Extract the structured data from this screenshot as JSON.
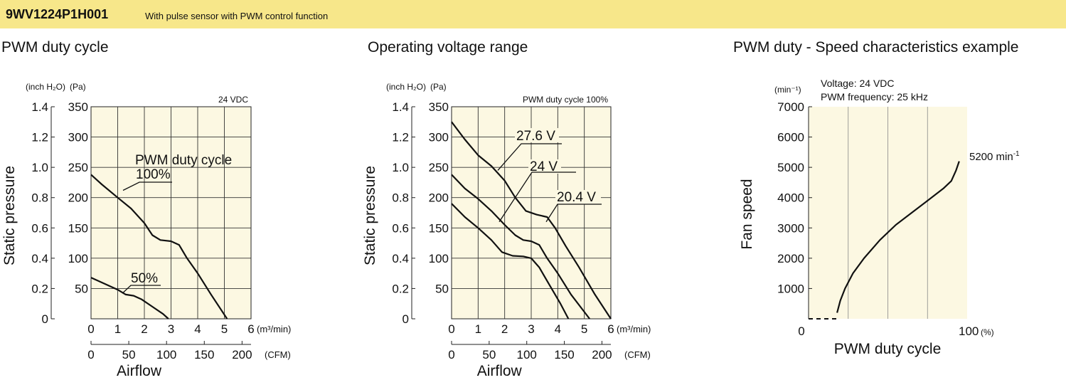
{
  "header": {
    "model": "9WV1224P1H001",
    "description": "With pulse sensor with PWM control function",
    "background": "#f7e78a"
  },
  "plot_background": "#fcf8e2",
  "chart_data": [
    {
      "type": "line",
      "title": "PWM duty cycle",
      "ylabel": "Static pressure",
      "xlabel": "Airflow",
      "y_unit_left": "(inch H₂O)",
      "y_unit_right": "(Pa)",
      "x_unit_primary": "(m³/min)",
      "x_unit_secondary": "(CFM)",
      "note": "24 VDC",
      "ylim": [
        0,
        350
      ],
      "xlim": [
        0,
        6
      ],
      "y_ticks_pa": [
        0,
        50,
        100,
        150,
        200,
        250,
        300,
        350
      ],
      "y_tick_labels_pa": [
        "",
        "50",
        "100",
        "150",
        "200",
        "250",
        "300",
        "350"
      ],
      "y_ticks_inch": [
        "0",
        "0.2",
        "0.4",
        "0.6",
        "0.8",
        "1.0",
        "1.2",
        "1.4"
      ],
      "x_ticks_m3": [
        "0",
        "1",
        "2",
        "3",
        "4",
        "5",
        "6"
      ],
      "x_ticks_cfm": [
        0,
        50,
        100,
        150,
        200
      ],
      "x_tick_labels_cfm": [
        "0",
        "50",
        "100",
        "150",
        "200"
      ],
      "grid": true,
      "series": [
        {
          "name": "PWM duty cycle 100%",
          "x": [
            0,
            0.4,
            1.0,
            1.5,
            2.0,
            2.3,
            2.6,
            3.0,
            3.3,
            3.6,
            4.0,
            4.5,
            5.1
          ],
          "y": [
            238,
            222,
            200,
            182,
            158,
            138,
            130,
            128,
            122,
            100,
            75,
            40,
            0
          ]
        },
        {
          "name": "50%",
          "x": [
            0,
            0.5,
            1.0,
            1.3,
            1.6,
            1.9,
            2.3,
            2.7,
            2.9
          ],
          "y": [
            68,
            58,
            48,
            40,
            38,
            32,
            20,
            8,
            0
          ]
        }
      ],
      "labels": [
        {
          "text": "PWM duty cycle",
          "lines": 1
        },
        {
          "text": "100%"
        },
        {
          "text": "50%"
        }
      ]
    },
    {
      "type": "line",
      "title": "Operating voltage range",
      "ylabel": "Static pressure",
      "xlabel": "Airflow",
      "y_unit_left": "(inch H₂O)",
      "y_unit_right": "(Pa)",
      "x_unit_primary": "(m³/min)",
      "x_unit_secondary": "(CFM)",
      "note": "PWM duty cycle 100%",
      "ylim": [
        0,
        350
      ],
      "xlim": [
        0,
        6
      ],
      "y_ticks_pa": [
        0,
        50,
        100,
        150,
        200,
        250,
        300,
        350
      ],
      "y_tick_labels_pa": [
        "",
        "50",
        "100",
        "150",
        "200",
        "250",
        "300",
        "350"
      ],
      "y_ticks_inch": [
        "0",
        "0.2",
        "0.4",
        "0.6",
        "0.8",
        "1.0",
        "1.2",
        "1.4"
      ],
      "x_ticks_m3": [
        "0",
        "1",
        "2",
        "3",
        "4",
        "5",
        "6"
      ],
      "x_ticks_cfm": [
        0,
        50,
        100,
        150,
        200
      ],
      "x_tick_labels_cfm": [
        "0",
        "50",
        "100",
        "150",
        "200"
      ],
      "grid": true,
      "series": [
        {
          "name": "27.6 V",
          "x": [
            0,
            0.5,
            1.0,
            1.5,
            2.0,
            2.4,
            2.8,
            3.2,
            3.6,
            3.9,
            4.3,
            4.8,
            5.4,
            6.0
          ],
          "y": [
            325,
            296,
            270,
            252,
            228,
            200,
            178,
            172,
            168,
            150,
            120,
            85,
            40,
            0
          ]
        },
        {
          "name": "24 V",
          "x": [
            0,
            0.5,
            1.0,
            1.5,
            2.0,
            2.4,
            2.7,
            3.0,
            3.3,
            3.6,
            4.0,
            4.5,
            5.2
          ],
          "y": [
            238,
            215,
            198,
            178,
            155,
            138,
            130,
            128,
            122,
            100,
            75,
            40,
            0
          ]
        },
        {
          "name": "20.4 V",
          "x": [
            0,
            0.5,
            1.0,
            1.5,
            1.9,
            2.3,
            2.7,
            3.0,
            3.3,
            3.7,
            4.1,
            4.4
          ],
          "y": [
            190,
            168,
            150,
            130,
            110,
            104,
            103,
            100,
            85,
            55,
            25,
            0
          ]
        }
      ],
      "labels": [
        {
          "text": "27.6 V"
        },
        {
          "text": "24 V"
        },
        {
          "text": "20.4 V"
        }
      ]
    },
    {
      "type": "line",
      "title": "PWM duty - Speed characteristics example",
      "ylabel": "Fan speed",
      "xlabel": "PWM duty cycle",
      "y_unit": "(min⁻¹)",
      "x_unit": "(%)",
      "info_lines": [
        "Voltage: 24 VDC",
        "PWM frequency: 25 kHz"
      ],
      "ylim": [
        0,
        7000
      ],
      "xlim": [
        0,
        100
      ],
      "y_ticks": [
        1000,
        2000,
        3000,
        4000,
        5000,
        6000,
        7000
      ],
      "y_tick_labels": [
        "1000",
        "2000",
        "3000",
        "4000",
        "5000",
        "6000",
        "7000"
      ],
      "x_tick_labels": [
        "0",
        "100"
      ],
      "grid": true,
      "series": [
        {
          "name": "speed",
          "x": [
            18,
            20,
            23,
            28,
            35,
            45,
            55,
            65,
            75,
            85,
            90,
            93,
            95
          ],
          "y": [
            200,
            600,
            1000,
            1500,
            2000,
            2600,
            3100,
            3500,
            3900,
            4300,
            4550,
            4900,
            5200
          ]
        },
        {
          "name": "stop",
          "x": [
            0,
            18
          ],
          "y": [
            0,
            0
          ]
        }
      ],
      "end_label": "5200 min",
      "end_label_sup": "-1"
    }
  ]
}
